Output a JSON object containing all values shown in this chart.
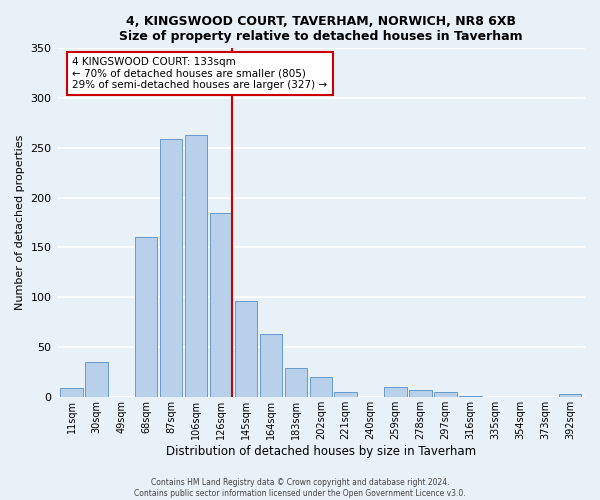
{
  "title": "4, KINGSWOOD COURT, TAVERHAM, NORWICH, NR8 6XB",
  "subtitle": "Size of property relative to detached houses in Taverham",
  "xlabel": "Distribution of detached houses by size in Taverham",
  "ylabel": "Number of detached properties",
  "bar_labels": [
    "11sqm",
    "30sqm",
    "49sqm",
    "68sqm",
    "87sqm",
    "106sqm",
    "126sqm",
    "145sqm",
    "164sqm",
    "183sqm",
    "202sqm",
    "221sqm",
    "240sqm",
    "259sqm",
    "278sqm",
    "297sqm",
    "316sqm",
    "335sqm",
    "354sqm",
    "373sqm",
    "392sqm"
  ],
  "bar_values": [
    9,
    35,
    0,
    161,
    259,
    263,
    185,
    96,
    63,
    29,
    20,
    5,
    0,
    10,
    7,
    5,
    1,
    0,
    0,
    0,
    3
  ],
  "bar_color": "#b8d0ea",
  "bar_edge_color": "#6699cc",
  "background_color": "#e8f0f8",
  "vline_color": "#cc0000",
  "vline_index": 6,
  "annotation_title": "4 KINGSWOOD COURT: 133sqm",
  "annotation_line1": "← 70% of detached houses are smaller (805)",
  "annotation_line2": "29% of semi-detached houses are larger (327) →",
  "annotation_box_color": "#ffffff",
  "annotation_box_edge": "#cc0000",
  "ylim": [
    0,
    350
  ],
  "yticks": [
    0,
    50,
    100,
    150,
    200,
    250,
    300,
    350
  ],
  "footer1": "Contains HM Land Registry data © Crown copyright and database right 2024.",
  "footer2": "Contains public sector information licensed under the Open Government Licence v3.0."
}
